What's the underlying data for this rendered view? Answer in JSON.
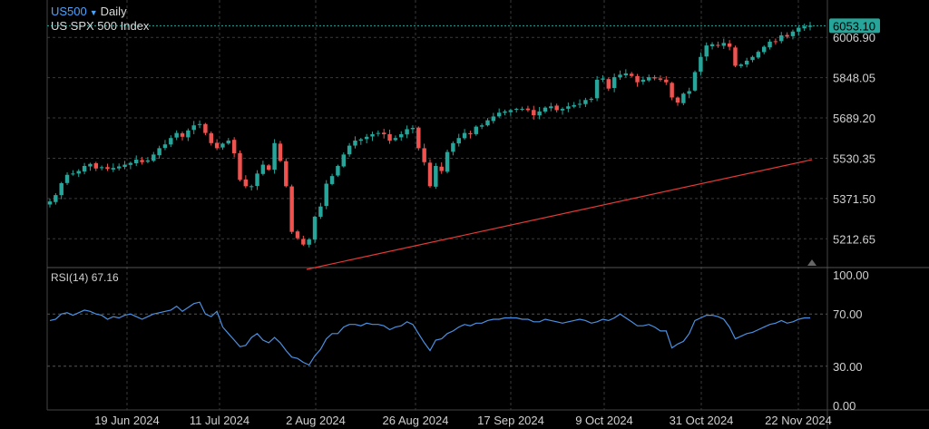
{
  "header": {
    "symbol": "US500",
    "interval": "Daily",
    "name": "US SPX 500 Index"
  },
  "colors": {
    "up": "#26a69a",
    "down": "#ef5350",
    "rsi_line": "#4a90e2",
    "trendline": "#e53935",
    "grid": "#3a3a3a",
    "price_badge": "#26a69a"
  },
  "current_price": "6053.10",
  "rsi": {
    "label": "RSI(14)",
    "value": "67.16"
  },
  "chart_data": [
    {
      "type": "candlestick",
      "title": "US SPX 500 Index",
      "ylim": [
        5110,
        6090
      ],
      "y_ticks": [
        "6006.90",
        "5848.05",
        "5689.20",
        "5530.35",
        "5371.50",
        "5212.65"
      ],
      "x_ticks": [
        "19 Jun 2024",
        "11 Jul 2024",
        "2 Aug 2024",
        "26 Aug 2024",
        "17 Sep 2024",
        "9 Oct 2024",
        "31 Oct 2024",
        "22 Nov 2024"
      ],
      "grid": true,
      "current_price": 6053.1,
      "close": [
        5360,
        5385,
        5432,
        5465,
        5470,
        5480,
        5500,
        5508,
        5490,
        5495,
        5488,
        5492,
        5498,
        5505,
        5512,
        5525,
        5515,
        5522,
        5545,
        5570,
        5585,
        5610,
        5630,
        5615,
        5640,
        5660,
        5665,
        5630,
        5590,
        5570,
        5588,
        5600,
        5550,
        5445,
        5420,
        5420,
        5470,
        5505,
        5485,
        5590,
        5520,
        5420,
        5240,
        5215,
        5190,
        5210,
        5300,
        5340,
        5430,
        5460,
        5500,
        5545,
        5580,
        5600,
        5605,
        5615,
        5625,
        5630,
        5625,
        5600,
        5610,
        5625,
        5645,
        5650,
        5570,
        5515,
        5420,
        5500,
        5480,
        5555,
        5590,
        5610,
        5630,
        5625,
        5655,
        5660,
        5680,
        5695,
        5710,
        5715,
        5720,
        5725,
        5725,
        5720,
        5700,
        5715,
        5730,
        5735,
        5720,
        5725,
        5735,
        5740,
        5745,
        5760,
        5765,
        5840,
        5845,
        5805,
        5850,
        5860,
        5865,
        5855,
        5830,
        5840,
        5850,
        5845,
        5840,
        5830,
        5770,
        5750,
        5785,
        5795,
        5870,
        5930,
        5975,
        5980,
        5975,
        5985,
        5970,
        5895,
        5900,
        5915,
        5930,
        5950,
        5970,
        5990,
        5990,
        6015,
        6010,
        6030,
        6045,
        6050,
        6053
      ]
    },
    {
      "type": "line",
      "title": "RSI(14)",
      "ylim": [
        0,
        100
      ],
      "y_ticks": [
        "100.00",
        "70.00",
        "30.00",
        "0.00"
      ],
      "reference_lines": [
        70,
        30
      ],
      "values": [
        65,
        66,
        70,
        71,
        69,
        71,
        73,
        72,
        70,
        69,
        66,
        68,
        67,
        69,
        70,
        68,
        66,
        68,
        70,
        71,
        72,
        73,
        76,
        72,
        75,
        78,
        79,
        70,
        68,
        72,
        60,
        55,
        50,
        45,
        46,
        52,
        55,
        50,
        48,
        52,
        48,
        42,
        37,
        36,
        33,
        31,
        38,
        43,
        51,
        55,
        55,
        60,
        62,
        62,
        61,
        63,
        62,
        62,
        61,
        58,
        60,
        61,
        64,
        62,
        55,
        48,
        42,
        50,
        51,
        55,
        57,
        60,
        62,
        61,
        63,
        63,
        65,
        66,
        66,
        67,
        67,
        67,
        66,
        66,
        64,
        64,
        66,
        65,
        64,
        63,
        64,
        65,
        66,
        65,
        63,
        64,
        66,
        65,
        67,
        70,
        67,
        64,
        61,
        61,
        62,
        60,
        57,
        57,
        44,
        47,
        49,
        55,
        65,
        67,
        69,
        69,
        68,
        66,
        60,
        51,
        53,
        55,
        56,
        58,
        60,
        62,
        63,
        65,
        63,
        64,
        66,
        67,
        67
      ]
    }
  ]
}
